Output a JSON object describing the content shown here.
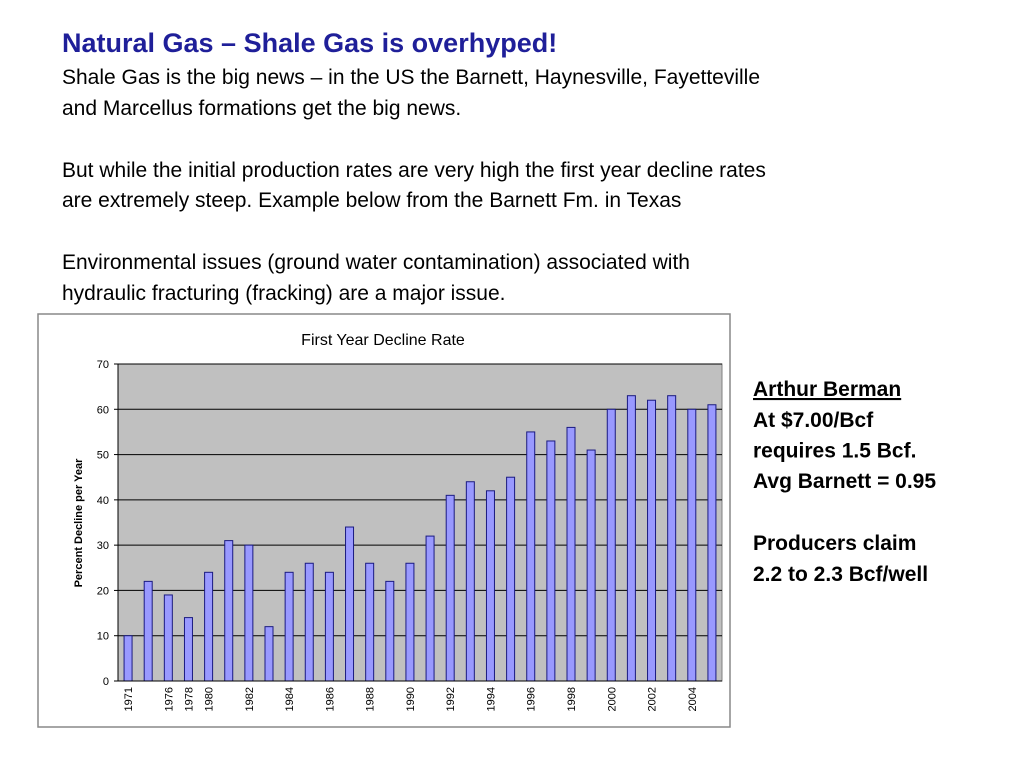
{
  "slide": {
    "title": "Natural Gas – Shale Gas is overhyped!",
    "paragraphs": [
      [
        "Shale Gas is the big news – in the US the Barnett, Haynesville, Fayetteville",
        "and Marcellus formations get the big news."
      ],
      [
        "But while the initial production rates are very high the first year decline rates",
        "are extremely steep. Example below from the Barnett Fm. in Texas"
      ],
      [
        "Environmental issues (ground water contamination) associated with",
        "hydraulic fracturing (fracking) are a major issue."
      ]
    ],
    "note_heading": "Arthur Berman",
    "note_lines": [
      "At $7.00/Bcf",
      "requires 1.5 Bcf.",
      "Avg Barnett = 0.95"
    ],
    "note_lines_2": [
      "Producers claim",
      "2.2 to 2.3 Bcf/well"
    ]
  },
  "chart_data": {
    "type": "bar",
    "title": "First Year Decline Rate",
    "y_label": "Percent Decline per Year",
    "categories": [
      "1971",
      null,
      "1976",
      "1978",
      "1980",
      null,
      "1982",
      null,
      "1984",
      null,
      "1986",
      null,
      "1988",
      null,
      "1990",
      null,
      "1992",
      null,
      "1994",
      null,
      "1996",
      null,
      "1998",
      null,
      "2000",
      null,
      "2002",
      null,
      "2004",
      null
    ],
    "values": [
      10,
      22,
      19,
      14,
      24,
      31,
      30,
      12,
      24,
      26,
      24,
      34,
      26,
      22,
      26,
      32,
      41,
      44,
      42,
      45,
      55,
      53,
      56,
      51,
      60,
      63,
      62,
      63,
      60,
      61
    ],
    "color": "#9999ff",
    "ylim": [
      0,
      70
    ],
    "yticks": [
      0,
      10,
      20,
      30,
      40,
      50,
      60,
      70
    ],
    "grid": true
  }
}
